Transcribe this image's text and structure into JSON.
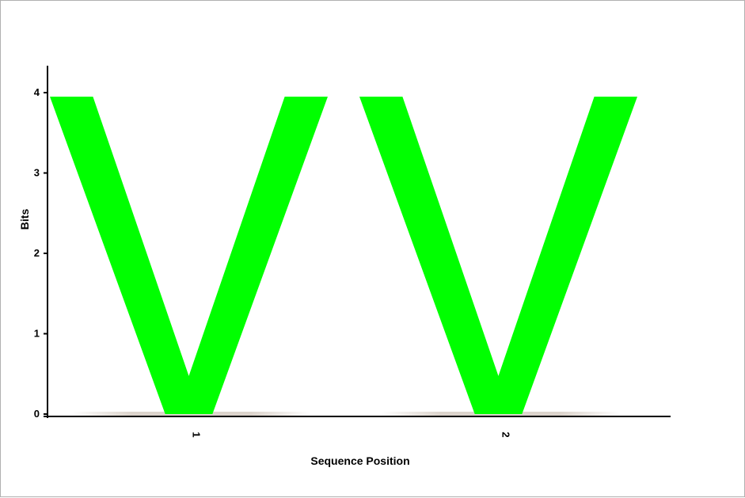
{
  "chart_data": {
    "type": "sequence-logo",
    "xlabel": "Sequence Position",
    "ylabel": "Bits",
    "ylim": [
      0,
      4
    ],
    "y_ticks": [
      "0",
      "1",
      "2",
      "3",
      "4"
    ],
    "positions": [
      {
        "label": "1",
        "letters": [
          {
            "char": "V",
            "bits": 3.95,
            "color": "#00ff00"
          }
        ]
      },
      {
        "label": "2",
        "letters": [
          {
            "char": "V",
            "bits": 3.95,
            "color": "#00ff00"
          }
        ]
      }
    ],
    "grid": false,
    "legend": "none"
  }
}
